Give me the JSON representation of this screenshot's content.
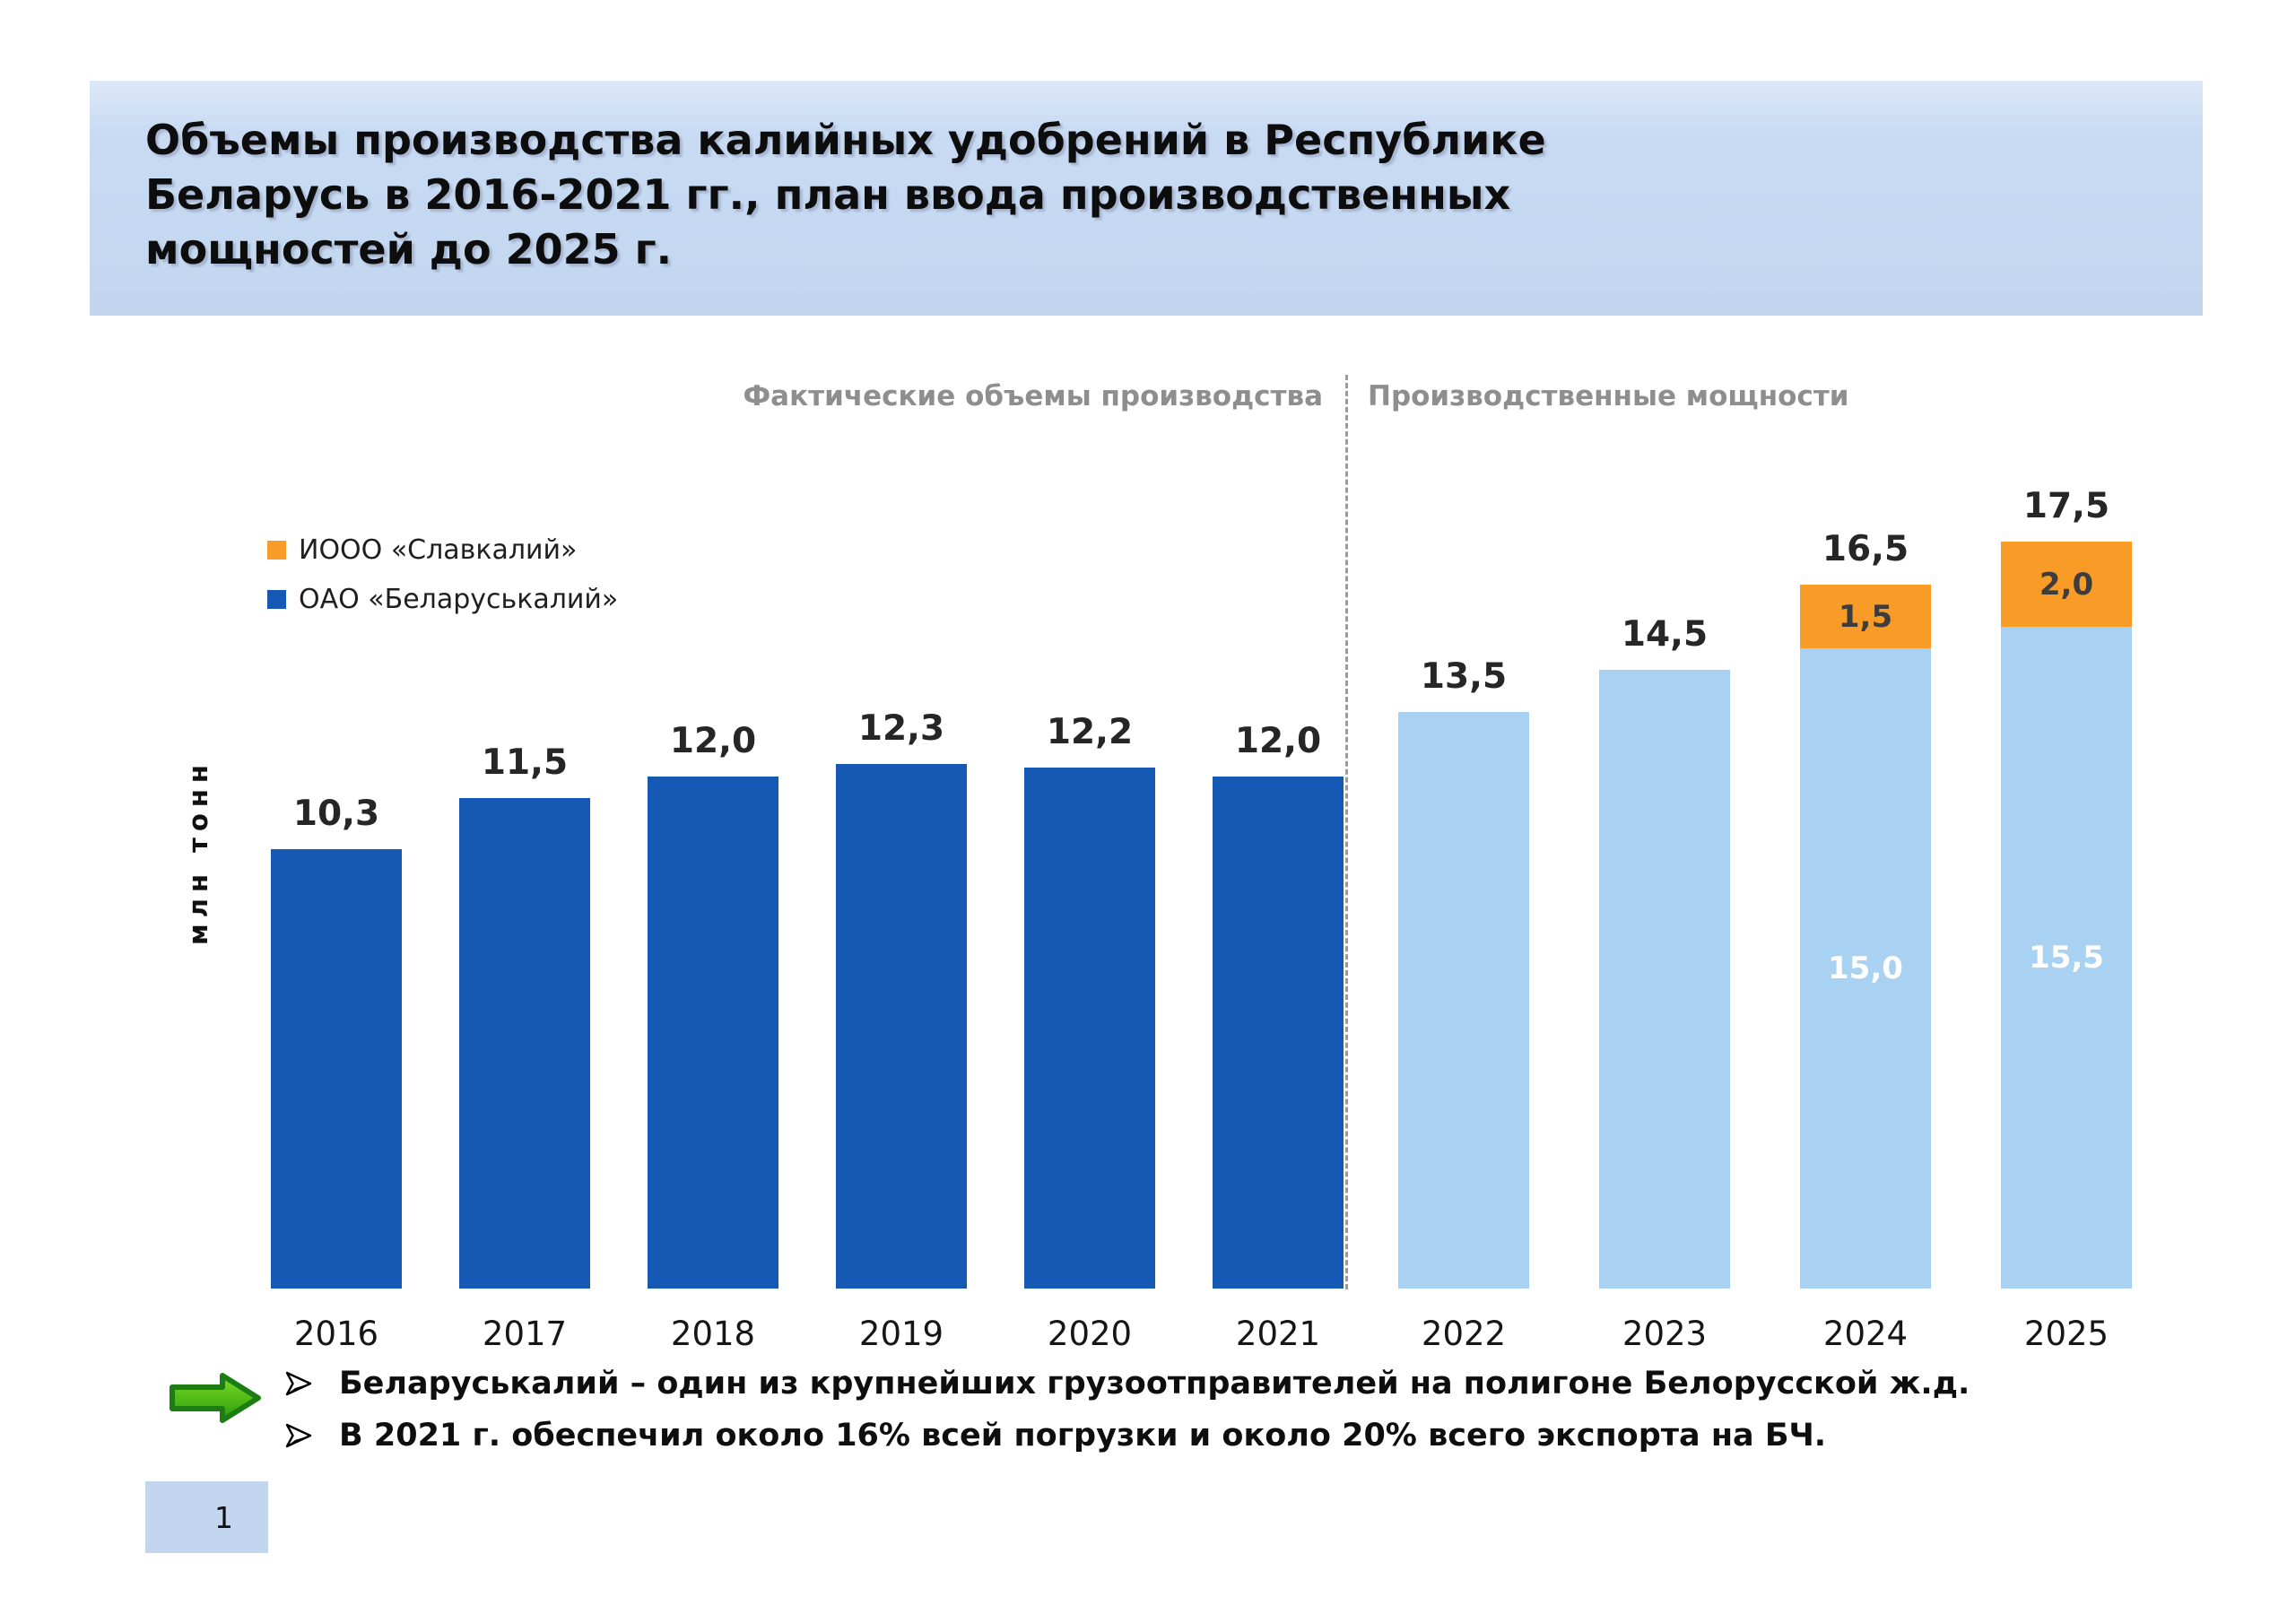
{
  "slide": {
    "title_lines": [
      "Объемы производства калийных удобрений в Республике",
      "Беларусь в 2016-2021 гг., план ввода производственных",
      "мощностей до 2025 г."
    ],
    "page_number": "1"
  },
  "chart_data": {
    "type": "bar",
    "stacked": true,
    "title": "Объемы производства калийных удобрений в Республике Беларусь в 2016-2021 гг., план ввода производственных мощностей до 2025 г.",
    "ylabel": "млн тонн",
    "ylim": [
      0,
      18.5
    ],
    "gridlines": false,
    "legend_position": "inside-top-left",
    "sections": [
      {
        "title": "Фактические объемы производства",
        "categories": [
          "2016",
          "2017",
          "2018",
          "2019",
          "2020",
          "2021"
        ]
      },
      {
        "title": "Производственные мощности",
        "categories": [
          "2022",
          "2023",
          "2024",
          "2025"
        ]
      }
    ],
    "legend": [
      {
        "label": "ИООО «Славкалий»",
        "color": "#f89b27"
      },
      {
        "label": "ОАО «Беларуськалий»",
        "color": "#1659b5"
      }
    ],
    "colors": {
      "actual": "#1659b5",
      "capacity": "#a9d2f2",
      "expansion": "#f89b27",
      "title_background": "#c2d6ef",
      "section_label": "#8e8e8e",
      "divider": "#9b9b9b",
      "arrow_green": "#45b313"
    },
    "categories": [
      "2016",
      "2017",
      "2018",
      "2019",
      "2020",
      "2021",
      "2022",
      "2023",
      "2024",
      "2025"
    ],
    "bars": [
      {
        "category": "2016",
        "section": 0,
        "top_label": "10,3",
        "segments": [
          {
            "series": "ОАО «Беларуськалий»",
            "value": 10.3,
            "color": "actual"
          }
        ]
      },
      {
        "category": "2017",
        "section": 0,
        "top_label": "11,5",
        "segments": [
          {
            "series": "ОАО «Беларуськалий»",
            "value": 11.5,
            "color": "actual"
          }
        ]
      },
      {
        "category": "2018",
        "section": 0,
        "top_label": "12,0",
        "segments": [
          {
            "series": "ОАО «Беларуськалий»",
            "value": 12.0,
            "color": "actual"
          }
        ]
      },
      {
        "category": "2019",
        "section": 0,
        "top_label": "12,3",
        "segments": [
          {
            "series": "ОАО «Беларуськалий»",
            "value": 12.3,
            "color": "actual"
          }
        ]
      },
      {
        "category": "2020",
        "section": 0,
        "top_label": "12,2",
        "segments": [
          {
            "series": "ОАО «Беларуськалий»",
            "value": 12.2,
            "color": "actual"
          }
        ]
      },
      {
        "category": "2021",
        "section": 0,
        "top_label": "12,0",
        "segments": [
          {
            "series": "ОАО «Беларуськалий»",
            "value": 12.0,
            "color": "actual"
          }
        ]
      },
      {
        "category": "2022",
        "section": 1,
        "top_label": "13,5",
        "segments": [
          {
            "series": "Мощности",
            "value": 13.5,
            "color": "capacity"
          }
        ]
      },
      {
        "category": "2023",
        "section": 1,
        "top_label": "14,5",
        "segments": [
          {
            "series": "Мощности",
            "value": 14.5,
            "color": "capacity"
          }
        ]
      },
      {
        "category": "2024",
        "section": 1,
        "top_label": "16,5",
        "segments": [
          {
            "series": "Мощности",
            "value": 15.0,
            "color": "capacity",
            "inner_label": "15,0",
            "inner_label_color": "#ffffff"
          },
          {
            "series": "ИООО «Славкалий»",
            "value": 1.5,
            "color": "expansion",
            "inner_label": "1,5",
            "inner_label_color": "#3d3d3d"
          }
        ]
      },
      {
        "category": "2025",
        "section": 1,
        "top_label": "17,5",
        "segments": [
          {
            "series": "Мощности",
            "value": 15.5,
            "color": "capacity",
            "inner_label": "15,5",
            "inner_label_color": "#ffffff"
          },
          {
            "series": "ИООО «Славкалий»",
            "value": 2.0,
            "color": "expansion",
            "inner_label": "2,0",
            "inner_label_color": "#3d3d3d"
          }
        ]
      }
    ]
  },
  "notes": {
    "bullets": [
      "Беларуськалий – один из крупнейших грузоотправителей на полигоне Белорусской ж.д.",
      "В 2021 г. обеспечил около 16% всей погрузки и около 20% всего экспорта на БЧ."
    ]
  }
}
